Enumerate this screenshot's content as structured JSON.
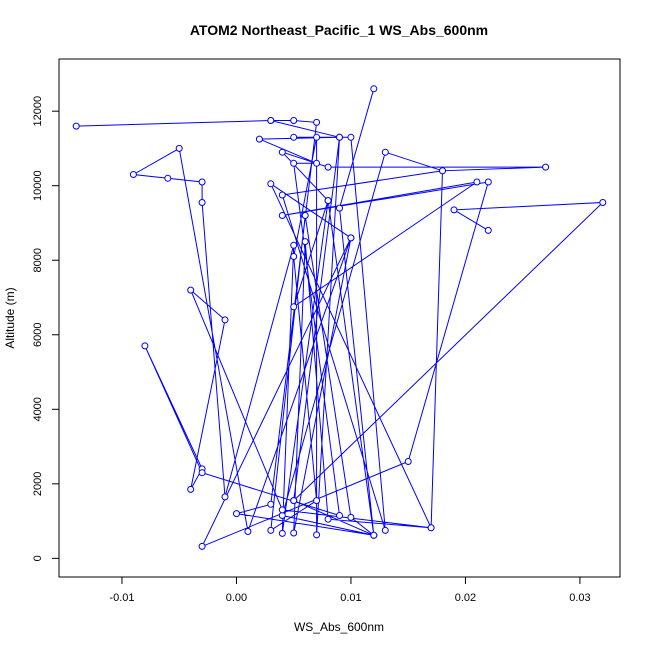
{
  "chart_data": {
    "type": "line",
    "title": "ATOM2 Northeast_Pacific_1 WS_Abs_600nm",
    "xlabel": "WS_Abs_600nm",
    "ylabel": "Altitude (m)",
    "xlim": [
      -0.0155,
      0.0335
    ],
    "ylim": [
      -500,
      13400
    ],
    "xticks": [
      -0.01,
      0.0,
      0.01,
      0.02,
      0.03
    ],
    "xtick_labels": [
      "-0.01",
      "0.00",
      "0.01",
      "0.02",
      "0.03"
    ],
    "yticks": [
      0,
      2000,
      4000,
      6000,
      8000,
      10000,
      12000
    ],
    "ytick_labels": [
      "0",
      "2000",
      "4000",
      "6000",
      "8000",
      "10000",
      "12000"
    ],
    "grid": false,
    "legend": "none",
    "colors": {
      "series": "#0000ff",
      "frame": "#000000",
      "background": "#ffffff"
    },
    "series": [
      {
        "points": [
          [
            0.012,
            12600
          ],
          [
            0.009,
            9400
          ],
          [
            0.012,
            620
          ],
          [
            0.01,
            1100
          ],
          [
            0.006,
            9200
          ],
          [
            0.003,
            750
          ],
          [
            0.007,
            1550
          ],
          [
            0.005,
            8100
          ],
          [
            0.007,
            11300
          ],
          [
            0.007,
            630
          ],
          [
            0.009,
            11300
          ],
          [
            0.005,
            1550
          ],
          [
            0.009,
            11300
          ],
          [
            0.005,
            11300
          ],
          [
            0.01,
            11300
          ],
          [
            0.013,
            750
          ],
          [
            0.004,
            9750
          ],
          [
            0.018,
            10400
          ],
          [
            0.013,
            10900
          ],
          [
            0.004,
            1150
          ],
          [
            0.012,
            620
          ],
          [
            0.008,
            9600
          ],
          [
            0.004,
            670
          ],
          [
            0.005,
            8400
          ],
          [
            -0.001,
            1650
          ],
          [
            -0.003,
            9550
          ],
          [
            -0.003,
            10100
          ],
          [
            -0.006,
            10200
          ],
          [
            -0.009,
            10300
          ],
          [
            -0.005,
            11000
          ],
          [
            0.001,
            720
          ],
          [
            0.01,
            8600
          ],
          [
            0.005,
            680
          ],
          [
            0.006,
            8500
          ],
          [
            0.008,
            1050
          ],
          [
            0.017,
            820
          ],
          [
            0.003,
            10050
          ],
          [
            0.01,
            8600
          ],
          [
            -0.003,
            320
          ],
          [
            0.015,
            2600
          ],
          [
            0.022,
            10100
          ],
          [
            0.004,
            9200
          ],
          [
            0.021,
            10100
          ],
          [
            0.005,
            6750
          ],
          [
            0.008,
            9600
          ],
          [
            0.004,
            10900
          ],
          [
            0.008,
            10500
          ],
          [
            0.027,
            10500
          ],
          [
            0.018,
            10400
          ],
          [
            0.017,
            820
          ],
          [
            0.004,
            1300
          ],
          [
            -0.004,
            7200
          ],
          [
            -0.001,
            6400
          ],
          [
            -0.004,
            1850
          ],
          [
            -0.003,
            2400
          ],
          [
            -0.008,
            5700
          ],
          [
            -0.003,
            2300
          ],
          [
            0.009,
            1150
          ],
          [
            0.005,
            10600
          ],
          [
            0.007,
            10600
          ],
          [
            0.002,
            11250
          ],
          [
            0.009,
            11300
          ],
          [
            0.003,
            11750
          ],
          [
            -0.014,
            11600
          ],
          [
            0.003,
            11750
          ],
          [
            0.005,
            11750
          ],
          [
            0.007,
            11700
          ],
          [
            0.003,
            1450
          ],
          [
            0.0,
            1200
          ],
          [
            0.012,
            620
          ],
          [
            0.005,
            1550
          ],
          [
            0.032,
            9550
          ],
          [
            0.019,
            9350
          ],
          [
            0.022,
            8800
          ]
        ]
      }
    ]
  }
}
